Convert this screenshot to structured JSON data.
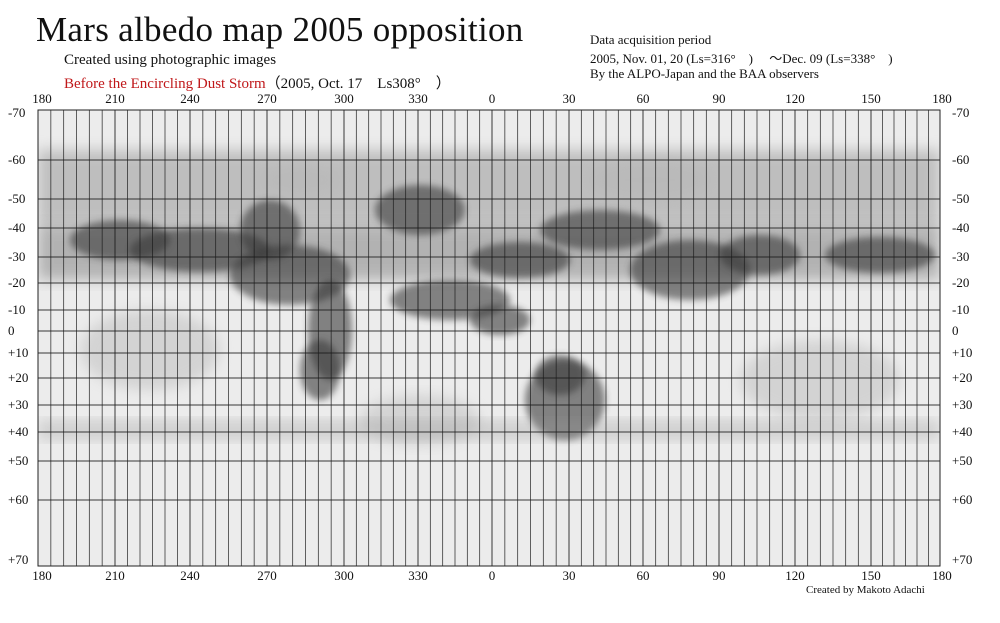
{
  "title": "Mars albedo map 2005 opposition",
  "subtitle_line1": "Created using photographic images",
  "subtitle_line2_red": "Before the Encircling Dust Storm",
  "subtitle_line2_black": "（2005, Oct. 17　Ls308°　）",
  "acquisition": {
    "heading": "Data acquisition period",
    "dates": "2005, Nov. 01, 20 (Ls=316°　) 　～Dec. 09 (Ls=338°　)",
    "observers": "By the ALPO-Japan and the BAA observers"
  },
  "credit": "Created by Makoto Adachi",
  "longitude_labels": [
    "180",
    "210",
    "240",
    "270",
    "300",
    "330",
    "0",
    "30",
    "60",
    "90",
    "120",
    "150",
    "180"
  ],
  "latitude_labels": [
    "-70",
    "-60",
    "-50",
    "-40",
    "-30",
    "-20",
    "-10",
    "0",
    "+10",
    "+20",
    "+30",
    "+40",
    "+50",
    "+60",
    "+70"
  ],
  "colors": {
    "title_red": "#c0181a",
    "grid": "#1a1a1a",
    "map_bg": "#e4e4e4"
  }
}
